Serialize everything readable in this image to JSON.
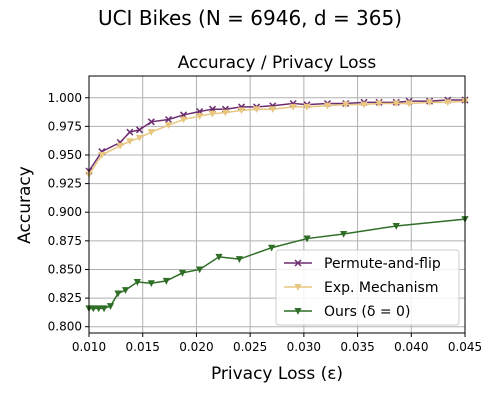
{
  "chart_data": {
    "type": "line",
    "suptitle": "UCI Bikes (N = 6946, d = 365)",
    "title": "Accuracy / Privacy Loss",
    "xlabel": "Privacy Loss (ε)",
    "ylabel": "Accuracy",
    "xlim": [
      0.01,
      0.045
    ],
    "ylim": [
      0.7945,
      1.019
    ],
    "xticks": [
      0.01,
      0.015,
      0.02,
      0.025,
      0.03,
      0.035,
      0.04,
      0.045
    ],
    "xtick_labels": [
      "0.010",
      "0.015",
      "0.020",
      "0.025",
      "0.030",
      "0.035",
      "0.040",
      "0.045"
    ],
    "yticks": [
      0.8,
      0.825,
      0.85,
      0.875,
      0.9,
      0.925,
      0.95,
      0.975,
      1.0
    ],
    "ytick_labels": [
      "0.800",
      "0.825",
      "0.850",
      "0.875",
      "0.900",
      "0.925",
      "0.950",
      "0.975",
      "1.000"
    ],
    "grid": true,
    "legend_position": "lower-right",
    "series": [
      {
        "name": "Permute-and-flip",
        "color": "#6c2d6f",
        "marker": "x",
        "x": [
          0.01,
          0.0112,
          0.0129,
          0.0138,
          0.0147,
          0.0158,
          0.0174,
          0.0188,
          0.0203,
          0.0215,
          0.0227,
          0.0242,
          0.0256,
          0.0271,
          0.029,
          0.0303,
          0.0322,
          0.0339,
          0.0356,
          0.037,
          0.0386,
          0.0398,
          0.0417,
          0.0434,
          0.045
        ],
        "y": [
          0.936,
          0.953,
          0.961,
          0.97,
          0.972,
          0.979,
          0.981,
          0.985,
          0.988,
          0.99,
          0.99,
          0.992,
          0.992,
          0.993,
          0.995,
          0.994,
          0.995,
          0.995,
          0.996,
          0.996,
          0.996,
          0.997,
          0.997,
          0.998,
          0.998
        ]
      },
      {
        "name": "Exp. Mechanism",
        "color": "#e8c67f",
        "marker": "triangle-down",
        "x": [
          0.01,
          0.0112,
          0.0129,
          0.0138,
          0.0147,
          0.0158,
          0.0174,
          0.0188,
          0.0203,
          0.0215,
          0.0227,
          0.0242,
          0.0256,
          0.0271,
          0.029,
          0.0303,
          0.0322,
          0.0339,
          0.0356,
          0.037,
          0.0386,
          0.0398,
          0.0417,
          0.0434,
          0.045
        ],
        "y": [
          0.933,
          0.95,
          0.958,
          0.962,
          0.965,
          0.97,
          0.976,
          0.981,
          0.984,
          0.986,
          0.987,
          0.989,
          0.99,
          0.99,
          0.992,
          0.992,
          0.993,
          0.994,
          0.994,
          0.995,
          0.995,
          0.995,
          0.996,
          0.996,
          0.997
        ]
      },
      {
        "name": "Ours (δ = 0)",
        "color": "#2f6e27",
        "marker": "triangle-down",
        "x": [
          0.01,
          0.0104,
          0.0109,
          0.0114,
          0.012,
          0.0127,
          0.0134,
          0.0145,
          0.0158,
          0.0172,
          0.0187,
          0.0203,
          0.0221,
          0.024,
          0.027,
          0.0303,
          0.0337,
          0.0386,
          0.045
        ],
        "y": [
          0.816,
          0.816,
          0.816,
          0.816,
          0.818,
          0.829,
          0.832,
          0.839,
          0.838,
          0.84,
          0.847,
          0.85,
          0.861,
          0.859,
          0.869,
          0.877,
          0.881,
          0.888,
          0.894
        ]
      }
    ]
  }
}
